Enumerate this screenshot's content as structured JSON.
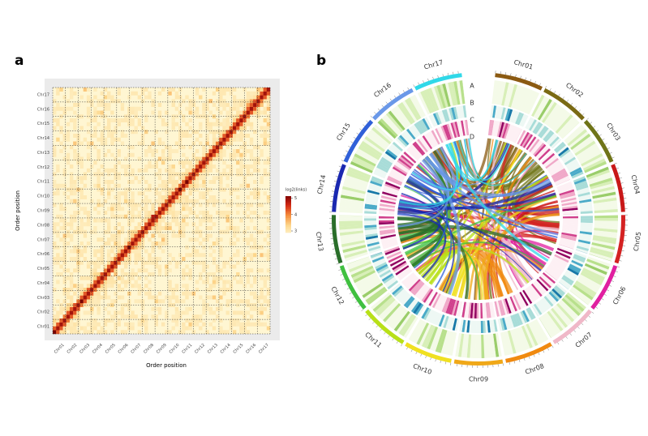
{
  "panel_a": {
    "label": "a",
    "x_axis_label": "Order position",
    "y_axis_label": "Order position",
    "chromosomes": [
      "Chr01",
      "Chr02",
      "Chr03",
      "Chr04",
      "Chr05",
      "Chr06",
      "Chr07",
      "Chr08",
      "Chr09",
      "Chr10",
      "Chr11",
      "Chr12",
      "Chr13",
      "Chr14",
      "Chr15",
      "Chr16",
      "Chr17"
    ],
    "legend": {
      "title": "log2(links)",
      "ticks": [
        5,
        4,
        3
      ]
    }
  },
  "panel_b": {
    "label": "b",
    "tracks": [
      "A",
      "B",
      "C",
      "D"
    ],
    "chromosomes": [
      {
        "name": "Chr01",
        "color": "#8b5a12"
      },
      {
        "name": "Chr02",
        "color": "#7a6a14"
      },
      {
        "name": "Chr03",
        "color": "#6f7418"
      },
      {
        "name": "Chr04",
        "color": "#c81818"
      },
      {
        "name": "Chr05",
        "color": "#d42222"
      },
      {
        "name": "Chr06",
        "color": "#e020a0"
      },
      {
        "name": "Chr07",
        "color": "#f0b8c8"
      },
      {
        "name": "Chr08",
        "color": "#f08a10"
      },
      {
        "name": "Chr09",
        "color": "#f0a818"
      },
      {
        "name": "Chr10",
        "color": "#f0e020"
      },
      {
        "name": "Chr11",
        "color": "#b8e018"
      },
      {
        "name": "Chr12",
        "color": "#40c040"
      },
      {
        "name": "Chr13",
        "color": "#2a6e2a"
      },
      {
        "name": "Chr14",
        "color": "#1a28b0"
      },
      {
        "name": "Chr15",
        "color": "#3060d8"
      },
      {
        "name": "Chr16",
        "color": "#6a98e8"
      },
      {
        "name": "Chr17",
        "color": "#30d8e8"
      }
    ]
  }
}
